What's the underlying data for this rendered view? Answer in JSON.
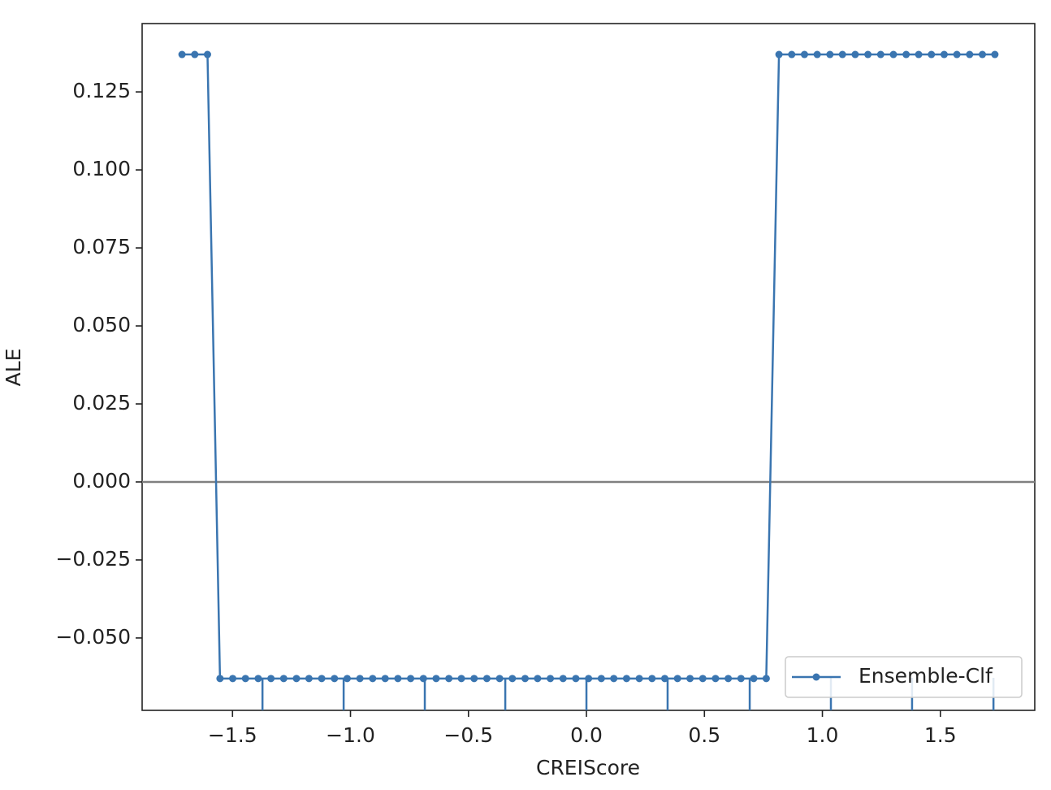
{
  "chart_data": {
    "type": "line",
    "xlabel": "CREIScore",
    "ylabel": "ALE",
    "x": [
      -1.714,
      -1.66,
      -1.606,
      -1.553,
      -1.499,
      -1.445,
      -1.391,
      -1.337,
      -1.283,
      -1.229,
      -1.176,
      -1.122,
      -1.068,
      -1.014,
      -0.96,
      -0.906,
      -0.853,
      -0.799,
      -0.745,
      -0.691,
      -0.637,
      -0.583,
      -0.53,
      -0.476,
      -0.422,
      -0.368,
      -0.314,
      -0.26,
      -0.207,
      -0.153,
      -0.099,
      -0.045,
      0.009,
      0.063,
      0.116,
      0.17,
      0.224,
      0.278,
      0.332,
      0.386,
      0.439,
      0.493,
      0.547,
      0.601,
      0.655,
      0.709,
      0.762,
      0.816,
      0.87,
      0.924,
      0.978,
      1.032,
      1.085,
      1.139,
      1.193,
      1.247,
      1.301,
      1.355,
      1.408,
      1.462,
      1.516,
      1.57,
      1.624,
      1.678,
      1.731
    ],
    "series": [
      {
        "name": "Ensemble-Clf",
        "color": "#3a75b0",
        "values": [
          0.137,
          0.137,
          0.137,
          -0.063,
          -0.063,
          -0.063,
          -0.063,
          -0.063,
          -0.063,
          -0.063,
          -0.063,
          -0.063,
          -0.063,
          -0.063,
          -0.063,
          -0.063,
          -0.063,
          -0.063,
          -0.063,
          -0.063,
          -0.063,
          -0.063,
          -0.063,
          -0.063,
          -0.063,
          -0.063,
          -0.063,
          -0.063,
          -0.063,
          -0.063,
          -0.063,
          -0.063,
          -0.063,
          -0.063,
          -0.063,
          -0.063,
          -0.063,
          -0.063,
          -0.063,
          -0.063,
          -0.063,
          -0.063,
          -0.063,
          -0.063,
          -0.063,
          -0.063,
          -0.063,
          0.137,
          0.137,
          0.137,
          0.137,
          0.137,
          0.137,
          0.137,
          0.137,
          0.137,
          0.137,
          0.137,
          0.137,
          0.137,
          0.137,
          0.137,
          0.137,
          0.137,
          0.137
        ]
      }
    ],
    "rug": [
      -1.373,
      -1.029,
      -0.685,
      -0.344,
      0,
      0.344,
      0.692,
      1.036,
      1.38,
      1.725
    ],
    "reference_line": 0,
    "reference_color": "#808080",
    "xlim": [
      -1.883,
      1.9
    ],
    "ylim": [
      -0.0732,
      0.1469
    ],
    "xticks": [
      {
        "value": -1.5,
        "label": "−1.5"
      },
      {
        "value": -1.0,
        "label": "−1.0"
      },
      {
        "value": -0.5,
        "label": "−0.5"
      },
      {
        "value": 0,
        "label": "0.0"
      },
      0.5,
      {
        "value": 1.0,
        "label": "1.0"
      },
      1.5
    ],
    "yticks": [
      {
        "value": -0.05,
        "label": "−0.050"
      },
      {
        "value": -0.025,
        "label": "−0.025"
      },
      {
        "value": 0,
        "label": "0.000"
      },
      {
        "value": 0.025,
        "label": "0.025"
      },
      {
        "value": 0.05,
        "label": "0.050"
      },
      {
        "value": 0.075,
        "label": "0.075"
      },
      {
        "value": 0.1,
        "label": "0.100"
      },
      0.125
    ],
    "legend": "lower right"
  }
}
